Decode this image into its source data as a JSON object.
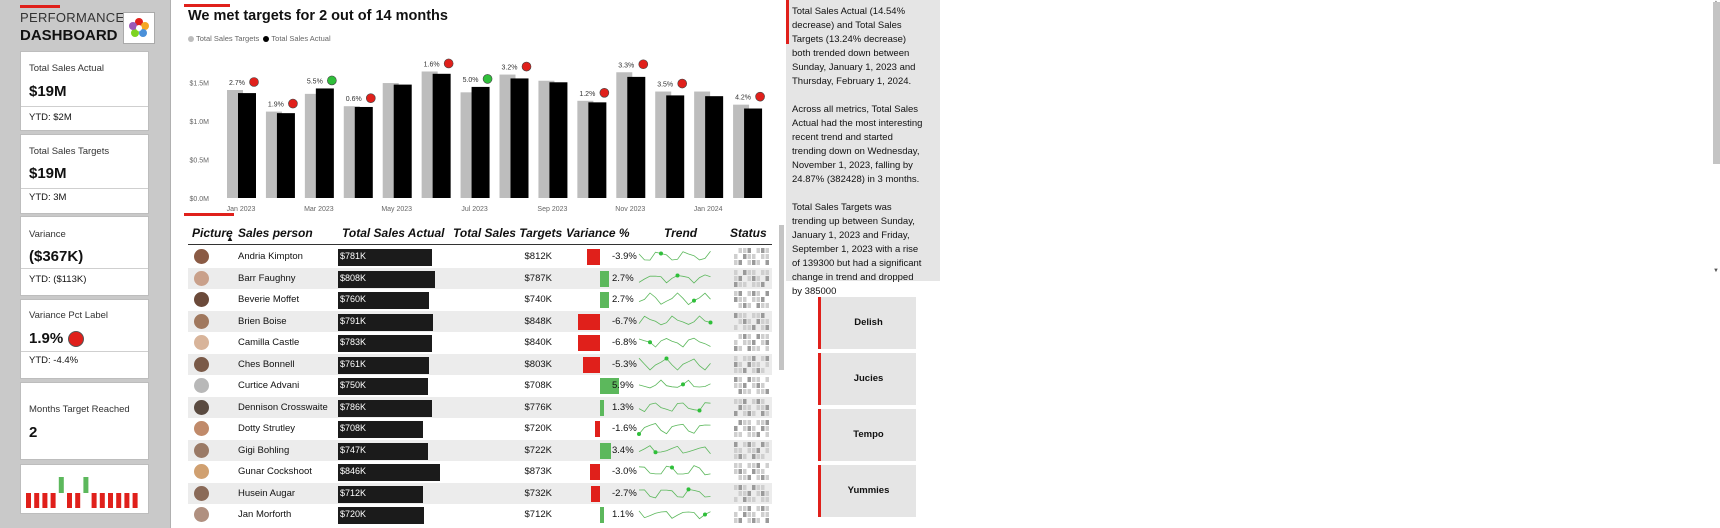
{
  "header": {
    "line1": "PERFORMANCE",
    "line2": "DASHBOARD"
  },
  "kpis": {
    "actual": {
      "label": "Total Sales Actual",
      "value": "$19M",
      "ytd": "YTD: $2M"
    },
    "targets": {
      "label": "Total Sales Targets",
      "value": "$19M",
      "ytd": "YTD: 3M"
    },
    "variance": {
      "label": "Variance",
      "value": "($367K)",
      "ytd": "YTD: ($113K)"
    },
    "variance_pct": {
      "label": "Variance Pct Label",
      "value": "1.9%",
      "ytd": "YTD: -4.4%"
    },
    "months": {
      "label": "Months Target Reached",
      "value": "2"
    },
    "mini_bars": [
      -1,
      -1,
      -1,
      -1,
      1,
      -1,
      -1,
      1,
      -1,
      -1,
      -1,
      -1,
      -1,
      -1
    ],
    "colors": {
      "positive": "#5cb85c",
      "negative": "#e0201b"
    }
  },
  "chart": {
    "title": "We met targets for 2 out of 14 months",
    "legend": [
      {
        "name": "Total Sales Targets",
        "color": "#bdbdbd"
      },
      {
        "name": "Total Sales Actual",
        "color": "#000000"
      }
    ]
  },
  "chart_data": {
    "type": "bar",
    "categories": [
      "Jan 2023",
      "Feb 2023",
      "Mar 2023",
      "Apr 2023",
      "May 2023",
      "Jun 2023",
      "Jul 2023",
      "Aug 2023",
      "Sep 2023",
      "Oct 2023",
      "Nov 2023",
      "Dec 2023",
      "Jan 2024",
      "Feb 2024"
    ],
    "x_tick_labels": [
      "Jan 2023",
      "",
      "Mar 2023",
      "",
      "May 2023",
      "",
      "Jul 2023",
      "",
      "Sep 2023",
      "",
      "Nov 2023",
      "",
      "Jan 2024",
      ""
    ],
    "series": [
      {
        "name": "Total Sales Targets",
        "color": "#bdbdbd",
        "values": [
          1.4,
          1.12,
          1.35,
          1.19,
          1.49,
          1.64,
          1.37,
          1.6,
          1.52,
          1.26,
          1.63,
          1.38,
          1.38,
          1.21
        ]
      },
      {
        "name": "Total Sales Actual",
        "color": "#000000",
        "values": [
          1.36,
          1.1,
          1.42,
          1.18,
          1.47,
          1.61,
          1.44,
          1.55,
          1.5,
          1.24,
          1.57,
          1.33,
          1.32,
          1.16
        ]
      }
    ],
    "variance_labels": [
      "2.7%",
      "1.9%",
      "5.5%",
      "0.6%",
      "",
      "1.6%",
      "5.0%",
      "3.2%",
      "",
      "1.2%",
      "3.3%",
      "3.5%",
      "",
      "4.2%"
    ],
    "variance_status": [
      "neg",
      "neg",
      "pos",
      "neg",
      "",
      "neg",
      "pos",
      "neg",
      "",
      "neg",
      "neg",
      "neg",
      "",
      "neg"
    ],
    "yticks": [
      "$0.0M",
      "$0.5M",
      "$1.0M",
      "$1.5M"
    ],
    "ylim": [
      0,
      1.75
    ]
  },
  "table": {
    "headers": {
      "picture": "Picture",
      "sales_person": "Sales person",
      "actual": "Total Sales Actual",
      "targets": "Total Sales Targets",
      "variance": "Variance %",
      "trend": "Trend",
      "status": "Status"
    },
    "rows": [
      {
        "name": "Andria Kimpton",
        "actual": "$781K",
        "actual_value": 781,
        "target": "$812K",
        "variance": "-3.9%",
        "variance_value": -3.9
      },
      {
        "name": "Barr Faughny",
        "actual": "$808K",
        "actual_value": 808,
        "target": "$787K",
        "variance": "2.7%",
        "variance_value": 2.7
      },
      {
        "name": "Beverie Moffet",
        "actual": "$760K",
        "actual_value": 760,
        "target": "$740K",
        "variance": "2.7%",
        "variance_value": 2.7
      },
      {
        "name": "Brien Boise",
        "actual": "$791K",
        "actual_value": 791,
        "target": "$848K",
        "variance": "-6.7%",
        "variance_value": -6.7
      },
      {
        "name": "Camilla Castle",
        "actual": "$783K",
        "actual_value": 783,
        "target": "$840K",
        "variance": "-6.8%",
        "variance_value": -6.8
      },
      {
        "name": "Ches Bonnell",
        "actual": "$761K",
        "actual_value": 761,
        "target": "$803K",
        "variance": "-5.3%",
        "variance_value": -5.3
      },
      {
        "name": "Curtice Advani",
        "actual": "$750K",
        "actual_value": 750,
        "target": "$708K",
        "variance": "5.9%",
        "variance_value": 5.9
      },
      {
        "name": "Dennison Crosswaite",
        "actual": "$786K",
        "actual_value": 786,
        "target": "$776K",
        "variance": "1.3%",
        "variance_value": 1.3
      },
      {
        "name": "Dotty Strutley",
        "actual": "$708K",
        "actual_value": 708,
        "target": "$720K",
        "variance": "-1.6%",
        "variance_value": -1.6
      },
      {
        "name": "Gigi Bohling",
        "actual": "$747K",
        "actual_value": 747,
        "target": "$722K",
        "variance": "3.4%",
        "variance_value": 3.4
      },
      {
        "name": "Gunar Cockshoot",
        "actual": "$846K",
        "actual_value": 846,
        "target": "$873K",
        "variance": "-3.0%",
        "variance_value": -3.0
      },
      {
        "name": "Husein Augar",
        "actual": "$712K",
        "actual_value": 712,
        "target": "$732K",
        "variance": "-2.7%",
        "variance_value": -2.7
      },
      {
        "name": "Jan Morforth",
        "actual": "$720K",
        "actual_value": 720,
        "target": "$712K",
        "variance": "1.1%",
        "variance_value": 1.1
      }
    ],
    "avatar_colors": [
      "#8a5a44",
      "#c9a08a",
      "#6b4a3a",
      "#a0785e",
      "#d8b49a",
      "#7a5a48",
      "#b8b8b8",
      "#5a4a40",
      "#c08a6a",
      "#9a7a66",
      "#d0a070",
      "#8a6a58",
      "#b09080"
    ]
  },
  "narrative": [
    "Total Sales Actual (14.54% decrease) and Total Sales Targets (13.24% decrease) both trended down between Sunday, January 1, 2023 and Thursday, February 1, 2024.",
    "Across all metrics, Total Sales Actual had the most interesting recent trend and started trending down on Wednesday, November 1, 2023, falling by 24.87% (382428) in 3 months.",
    "Total Sales Targets was trending up between Sunday, January 1, 2023 and Friday, September 1, 2023 with a rise of 139300 but had a significant change in trend and dropped by 385000"
  ],
  "slicers": [
    "Delish",
    "Jucies",
    "Tempo",
    "Yummies"
  ]
}
